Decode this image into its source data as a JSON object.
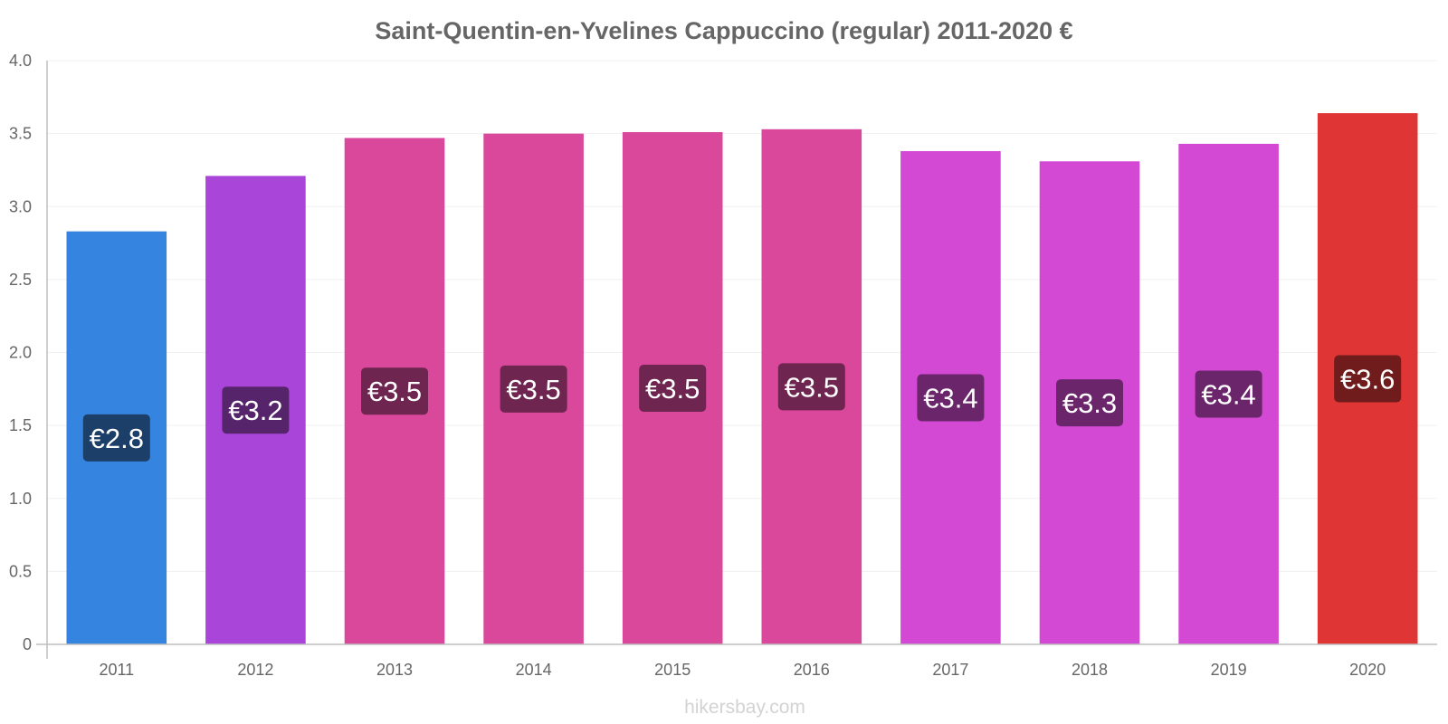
{
  "chart_data": {
    "type": "bar",
    "title": "Saint-Quentin-en-Yvelines Cappuccino (regular) 2011-2020 €",
    "categories": [
      "2011",
      "2012",
      "2013",
      "2014",
      "2015",
      "2016",
      "2017",
      "2018",
      "2019",
      "2020"
    ],
    "values": [
      2.83,
      3.21,
      3.47,
      3.5,
      3.51,
      3.53,
      3.38,
      3.31,
      3.43,
      3.64
    ],
    "value_labels": [
      "€2.8",
      "€3.2",
      "€3.5",
      "€3.5",
      "€3.5",
      "€3.5",
      "€3.4",
      "€3.3",
      "€3.4",
      "€3.6"
    ],
    "bar_colors": [
      "#3584e0",
      "#a946d9",
      "#d9489b",
      "#d9489b",
      "#d9489b",
      "#d9489b",
      "#d449d4",
      "#d449d4",
      "#d449d4",
      "#e03535"
    ],
    "label_bg_colors": [
      "#1c3f6a",
      "#55246b",
      "#6e2550",
      "#6e2550",
      "#6e2550",
      "#6e2550",
      "#6b256b",
      "#6b256b",
      "#6b256b",
      "#701c1c"
    ],
    "yticks": [
      "0",
      "0.5",
      "1.0",
      "1.5",
      "2.0",
      "2.5",
      "3.0",
      "3.5",
      "4.0"
    ],
    "ylim": [
      0,
      4
    ],
    "xlabel": "",
    "ylabel": "",
    "grid": true,
    "legend": "none"
  },
  "credit": "hikersbay.com"
}
